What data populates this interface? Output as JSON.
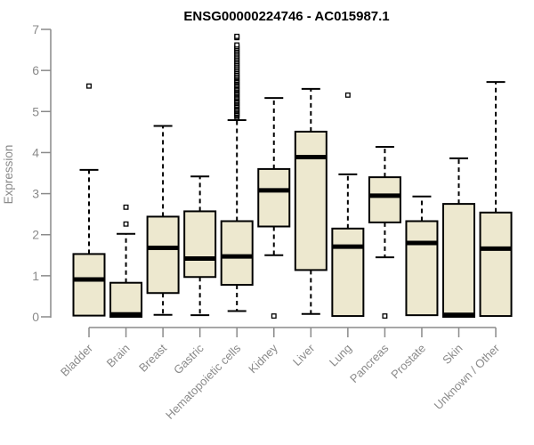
{
  "title": "ENSG00000224746 - AC015987.1",
  "chart_data": {
    "type": "boxplot",
    "title": "ENSG00000224746 - AC015987.1",
    "xlabel": "",
    "ylabel": "Expression",
    "ylim": [
      0,
      7
    ],
    "yticks": [
      0,
      1,
      2,
      3,
      4,
      5,
      6,
      7
    ],
    "grid": false,
    "legend": false,
    "categories": [
      "Bladder",
      "Brain",
      "Breast",
      "Gastric",
      "Hematopoietic cells",
      "Kidney",
      "Liver",
      "Lung",
      "Pancreas",
      "Prostate",
      "Skin",
      "Unknown / Other"
    ],
    "boxes": [
      {
        "category": "Bladder",
        "whisker_low": 0.03,
        "q1": 0.03,
        "median": 0.91,
        "q3": 1.53,
        "whisker_high": 3.58,
        "outliers": [
          5.62
        ]
      },
      {
        "category": "Brain",
        "whisker_low": 0.0,
        "q1": 0.0,
        "median": 0.06,
        "q3": 0.83,
        "whisker_high": 2.02,
        "outliers": [
          2.26,
          2.67
        ]
      },
      {
        "category": "Breast",
        "whisker_low": 0.05,
        "q1": 0.58,
        "median": 1.68,
        "q3": 2.44,
        "whisker_high": 4.65,
        "outliers": []
      },
      {
        "category": "Gastric",
        "whisker_low": 0.04,
        "q1": 0.97,
        "median": 1.42,
        "q3": 2.57,
        "whisker_high": 3.42,
        "outliers": []
      },
      {
        "category": "Hematopoietic cells",
        "whisker_low": 0.14,
        "q1": 0.78,
        "median": 1.47,
        "q3": 2.33,
        "whisker_high": 4.79,
        "outliers": [
          4.86,
          4.9,
          4.93,
          4.96,
          5.0,
          5.03,
          5.06,
          5.1,
          5.13,
          5.16,
          5.2,
          5.23,
          5.26,
          5.3,
          5.33,
          5.36,
          5.4,
          5.43,
          5.46,
          5.5,
          5.53,
          5.56,
          5.6,
          5.63,
          5.66,
          5.7,
          5.73,
          5.76,
          5.8,
          5.83,
          5.86,
          5.9,
          5.94,
          5.98,
          6.02,
          6.06,
          6.1,
          6.14,
          6.18,
          6.22,
          6.26,
          6.3,
          6.34,
          6.38,
          6.42,
          6.46,
          6.5,
          6.54,
          6.58,
          6.62,
          6.8,
          6.83
        ]
      },
      {
        "category": "Kidney",
        "whisker_low": 1.5,
        "q1": 2.2,
        "median": 3.08,
        "q3": 3.6,
        "whisker_high": 5.33,
        "outliers": [
          0.02
        ]
      },
      {
        "category": "Liver",
        "whisker_low": 0.07,
        "q1": 1.14,
        "median": 3.89,
        "q3": 4.51,
        "whisker_high": 5.55,
        "outliers": []
      },
      {
        "category": "Lung",
        "whisker_low": 0.02,
        "q1": 0.02,
        "median": 1.71,
        "q3": 2.15,
        "whisker_high": 3.47,
        "outliers": [
          5.4
        ]
      },
      {
        "category": "Pancreas",
        "whisker_low": 1.45,
        "q1": 2.3,
        "median": 2.95,
        "q3": 3.4,
        "whisker_high": 4.14,
        "outliers": [
          0.02
        ]
      },
      {
        "category": "Prostate",
        "whisker_low": 0.04,
        "q1": 0.04,
        "median": 1.8,
        "q3": 2.33,
        "whisker_high": 2.93,
        "outliers": []
      },
      {
        "category": "Skin",
        "whisker_low": 0.0,
        "q1": 0.0,
        "median": 0.05,
        "q3": 2.75,
        "whisker_high": 3.86,
        "outliers": []
      },
      {
        "category": "Unknown / Other",
        "whisker_low": 0.02,
        "q1": 0.02,
        "median": 1.66,
        "q3": 2.54,
        "whisker_high": 5.72,
        "outliers": []
      }
    ],
    "colors": {
      "box_fill": "#EDE8CF",
      "box_border": "#000000",
      "median": "#000000",
      "whisker": "#000000",
      "outlier_border": "#000000",
      "outlier_fill": "#ffffff",
      "axis": "#8a8a8a",
      "text": "#8a8a8a",
      "title": "#000000",
      "background": "#ffffff"
    }
  }
}
